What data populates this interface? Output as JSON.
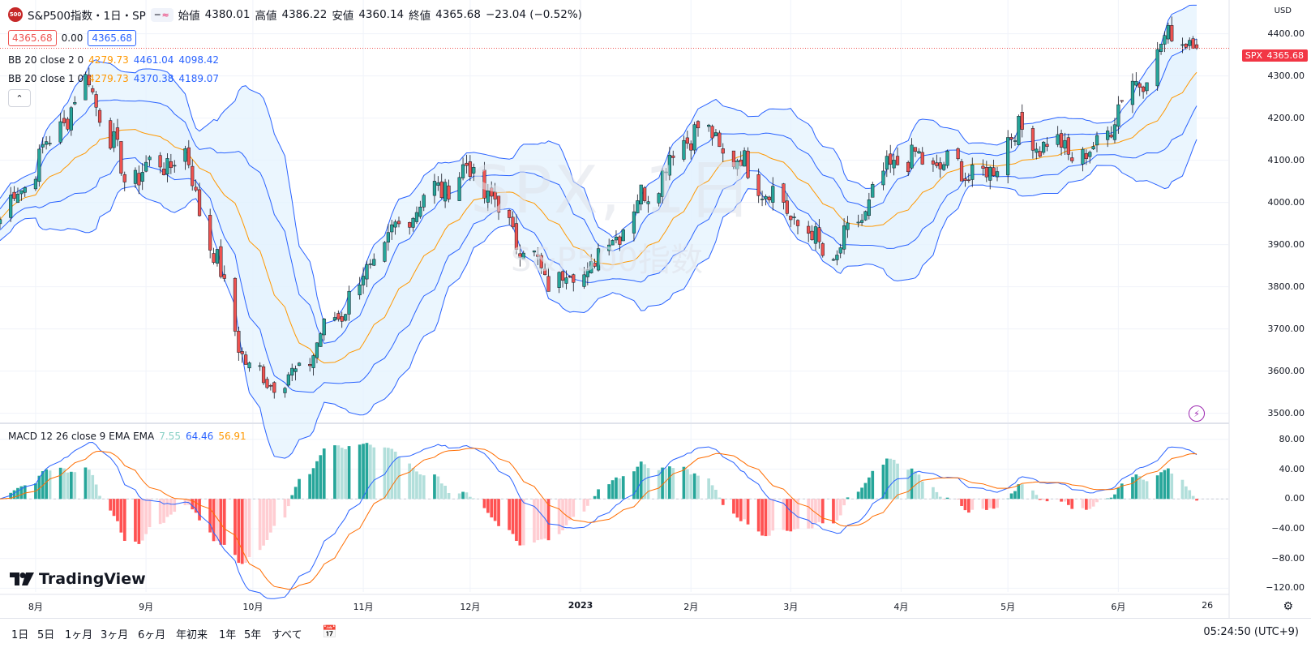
{
  "header": {
    "logo_text": "500",
    "symbol": "S&P500指数・1日・SP",
    "open_label": "始値",
    "open": "4380.01",
    "high_label": "高値",
    "high": "4386.22",
    "low_label": "安値",
    "low": "4360.14",
    "close_label": "終値",
    "close": "4365.68",
    "change": "−23.04 (−0.52%)",
    "bid": "4365.68",
    "spread": "0.00",
    "ask": "4365.68"
  },
  "indicators": {
    "bb2": {
      "name": "BB 20 close 2 0",
      "basis": "4279.73",
      "upper": "4461.04",
      "lower": "4098.42"
    },
    "bb1": {
      "name": "BB 20 close 1 0",
      "basis": "4279.73",
      "upper": "4370.38",
      "lower": "4189.07"
    },
    "macd": {
      "name": "MACD 12 26 close 9 EMA EMA",
      "hist": "7.55",
      "macd": "64.46",
      "signal": "56.91"
    }
  },
  "watermark": {
    "symbol": "SPX, 1日",
    "name": "S&P500指数"
  },
  "price_axis": {
    "currency": "USD",
    "labels": [
      "4400.00",
      "4300.00",
      "4200.00",
      "4100.00",
      "4000.00",
      "3900.00",
      "3800.00",
      "3700.00",
      "3600.00",
      "3500.00"
    ],
    "last_tag": "SPX",
    "last_price": "4365.68"
  },
  "macd_axis": {
    "labels": [
      "80.00",
      "40.00",
      "0.00",
      "−40.00",
      "−80.00",
      "−120.00"
    ]
  },
  "time_axis": {
    "labels": [
      "8月",
      "9月",
      "10月",
      "11月",
      "12月",
      "2023",
      "2月",
      "3月",
      "4月",
      "5月",
      "6月",
      "26"
    ]
  },
  "bottom": {
    "periods": [
      "1日",
      "5日",
      "1ヶ月",
      "3ヶ月",
      "6ヶ月",
      "年初来",
      "1年",
      "5年",
      "すべて"
    ],
    "clock": "05:24:50 (UTC+9)"
  },
  "branding": {
    "name": "TradingView"
  },
  "colors": {
    "up": "#26a69a",
    "down": "#ef5350",
    "bb": "#2962ff",
    "basis": "#ff9800",
    "fill": "#e3f2fd"
  },
  "chart_data": {
    "type": "candlestick",
    "title": "S&P500指数・1日・SP",
    "ylim": [
      3480,
      4480
    ],
    "x_range": [
      "2022-07-22",
      "2023-06-23"
    ],
    "price_keypoints": [
      [
        "2022-07-22",
        3960
      ],
      [
        "2022-08-16",
        4290
      ],
      [
        "2022-08-26",
        4060
      ],
      [
        "2022-09-12",
        4110
      ],
      [
        "2022-09-30",
        3590
      ],
      [
        "2022-10-12",
        3580
      ],
      [
        "2022-11-15",
        3990
      ],
      [
        "2022-12-01",
        4080
      ],
      [
        "2022-12-22",
        3820
      ],
      [
        "2023-01-03",
        3840
      ],
      [
        "2023-02-02",
        4180
      ],
      [
        "2023-02-17",
        4080
      ],
      [
        "2023-03-13",
        3860
      ],
      [
        "2023-03-31",
        4110
      ],
      [
        "2023-04-26",
        4060
      ],
      [
        "2023-05-01",
        4170
      ],
      [
        "2023-05-15",
        4130
      ],
      [
        "2023-05-24",
        4110
      ],
      [
        "2023-06-05",
        4280
      ],
      [
        "2023-06-12",
        4340
      ],
      [
        "2023-06-16",
        4420
      ],
      [
        "2023-06-23",
        4365
      ]
    ],
    "bb_basis_last": 4279.73,
    "bb_upper_last": 4461.04,
    "bb_lower_last": 4098.42,
    "macd_last": 64.46,
    "signal_last": 56.91,
    "hist_last": 7.55,
    "macd_ylim": [
      -125,
      95
    ]
  }
}
